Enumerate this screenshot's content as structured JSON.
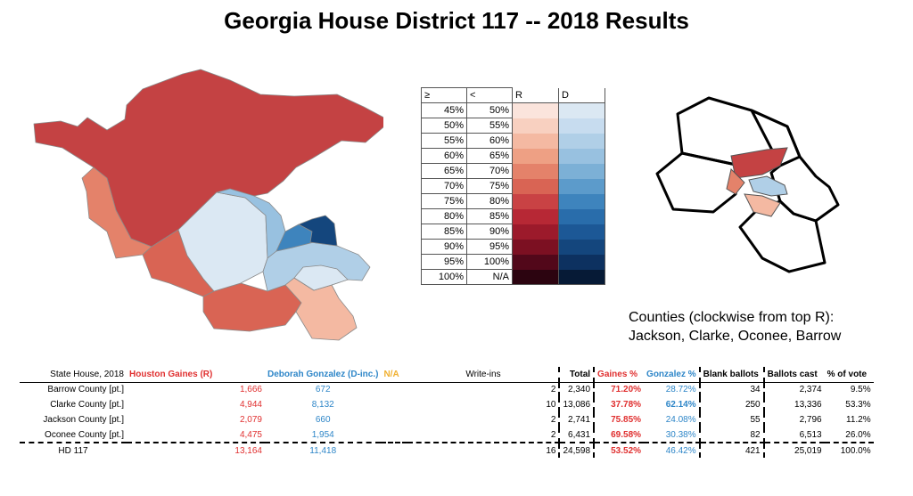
{
  "title": "Georgia House District 117 -- 2018 Results",
  "legend": {
    "headers": [
      "≥",
      "<",
      "R",
      "D"
    ],
    "rows": [
      [
        "45%",
        "50%"
      ],
      [
        "50%",
        "55%"
      ],
      [
        "55%",
        "60%"
      ],
      [
        "60%",
        "65%"
      ],
      [
        "65%",
        "70%"
      ],
      [
        "70%",
        "75%"
      ],
      [
        "75%",
        "80%"
      ],
      [
        "80%",
        "85%"
      ],
      [
        "85%",
        "90%"
      ],
      [
        "90%",
        "95%"
      ],
      [
        "95%",
        "100%"
      ],
      [
        "100%",
        "N/A"
      ]
    ],
    "r_colors": [
      "#fbe4dc",
      "#f8d0c0",
      "#f4b9a2",
      "#eea084",
      "#e4826a",
      "#d96454",
      "#c94244",
      "#b72835",
      "#9c1a2b",
      "#7c1022",
      "#52081a",
      "#2c0410"
    ],
    "d_colors": [
      "#dbe8f3",
      "#c7dcef",
      "#b0cfe7",
      "#98c1e0",
      "#7cb0d6",
      "#5c9bcb",
      "#3e84bd",
      "#296dab",
      "#1c5896",
      "#14467d",
      "#0d3160",
      "#061a36"
    ]
  },
  "map": {
    "regions": [
      {
        "name": "north-region",
        "color": "#c44243"
      },
      {
        "name": "northwest-region",
        "color": "#e4826a"
      },
      {
        "name": "west-region",
        "color": "#d96454"
      },
      {
        "name": "southwest-region",
        "color": "#d96454"
      },
      {
        "name": "south-region",
        "color": "#f4b9a2"
      },
      {
        "name": "center-light-region",
        "color": "#dbe8f3"
      },
      {
        "name": "center-blue-region",
        "color": "#98c1e0"
      },
      {
        "name": "east-blue-region",
        "color": "#b0cfe7"
      },
      {
        "name": "east-mid-blue-region",
        "color": "#3e84bd"
      },
      {
        "name": "east-dark-blue-region",
        "color": "#14467d"
      },
      {
        "name": "lower-center-region",
        "color": "#dbe8f3"
      }
    ]
  },
  "caption": {
    "line1": "Counties (clockwise from top R):",
    "line2": "Jackson, Clarke, Oconee, Barrow"
  },
  "chart_data": {
    "type": "table",
    "headers": [
      "State House, 2018",
      "Houston Gaines (R)",
      "Deborah Gonzalez (D-inc.)",
      "N/A",
      "Write-ins",
      "Total",
      "Gaines %",
      "Gonzalez %",
      "Blank ballots",
      "Ballots cast",
      "% of vote"
    ],
    "rows": [
      [
        "Barrow County [pt.]",
        "1,666",
        "672",
        "",
        "2",
        "2,340",
        "71.20%",
        "28.72%",
        "34",
        "2,374",
        "9.5%"
      ],
      [
        "Clarke County [pt.]",
        "4,944",
        "8,132",
        "",
        "10",
        "13,086",
        "37.78%",
        "62.14%",
        "250",
        "13,336",
        "53.3%"
      ],
      [
        "Jackson County [pt.]",
        "2,079",
        "660",
        "",
        "2",
        "2,741",
        "75.85%",
        "24.08%",
        "55",
        "2,796",
        "11.2%"
      ],
      [
        "Oconee County [pt.]",
        "4,475",
        "1,954",
        "",
        "2",
        "6,431",
        "69.58%",
        "30.38%",
        "82",
        "6,513",
        "26.0%"
      ],
      [
        "HD 117",
        "13,164",
        "11,418",
        "",
        "16",
        "24,598",
        "53.52%",
        "46.42%",
        "421",
        "25,019",
        "100.0%"
      ]
    ]
  }
}
